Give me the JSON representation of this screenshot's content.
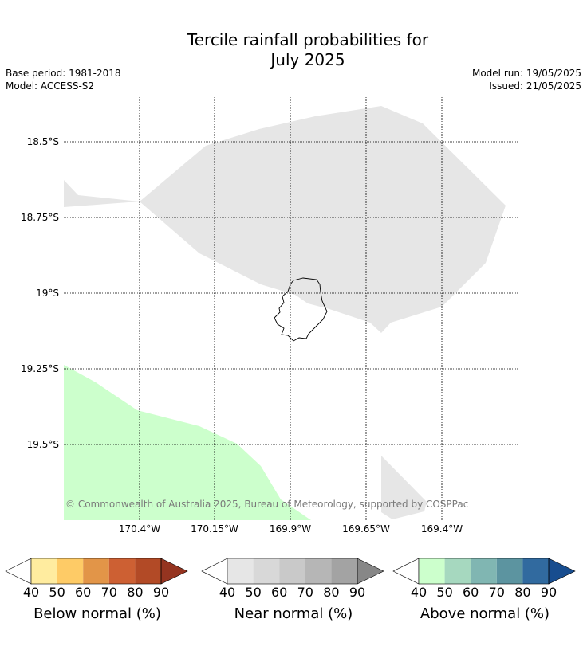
{
  "title_line1": "Tercile rainfall probabilities for",
  "title_line2": "July 2025",
  "base_period": "Base period: 1981-2018",
  "model": "Model: ACCESS-S2",
  "model_run": "Model run: 19/05/2025",
  "issued": "Issued: 21/05/2025",
  "lat_labels": [
    "18.5°S",
    "18.75°S",
    "19°S",
    "19.25°S",
    "19.5°S"
  ],
  "lon_labels": [
    "170.4°W",
    "170.15°W",
    "169.9°W",
    "169.65°W",
    "169.4°W"
  ],
  "copyright": "© Commonwealth of Australia 2025, Bureau of Meteorology, supported by COSPPac",
  "map_regions": [
    {
      "category": "Near normal",
      "level": "40-50",
      "color": "#e6e6e6"
    },
    {
      "category": "Above normal",
      "level": "40-50",
      "color": "#ccffcc"
    }
  ],
  "colorbars": [
    {
      "label": "Below normal (%)",
      "ticks": [
        "40",
        "50",
        "60",
        "70",
        "80",
        "90"
      ],
      "colors": [
        "#ffec9f",
        "#fecb66",
        "#e29548",
        "#cd6033",
        "#b24a26",
        "#953420"
      ]
    },
    {
      "label": "Near normal (%)",
      "ticks": [
        "40",
        "50",
        "60",
        "70",
        "80",
        "90"
      ],
      "colors": [
        "#e6e6e6",
        "#d8d8d8",
        "#c9c9c9",
        "#b6b6b6",
        "#a3a3a3",
        "#878787"
      ]
    },
    {
      "label": "Above normal (%)",
      "ticks": [
        "40",
        "50",
        "60",
        "70",
        "80",
        "90"
      ],
      "colors": [
        "#ccffcc",
        "#a6d8bf",
        "#80b6b2",
        "#5c94a0",
        "#316a9f",
        "#184d8f"
      ]
    }
  ]
}
